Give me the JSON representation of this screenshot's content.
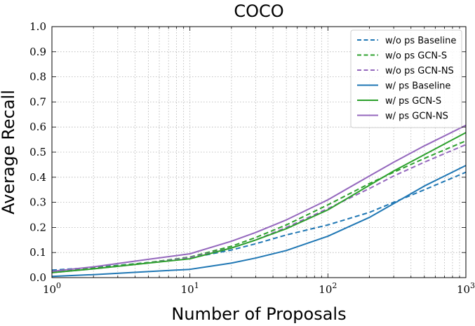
{
  "chart_data": {
    "type": "line",
    "title": "COCO",
    "xlabel": "Number of Proposals",
    "ylabel": "Average Recall",
    "xscale": "log",
    "xlim": [
      1,
      1000
    ],
    "ylim": [
      0,
      1.0
    ],
    "grid": true,
    "legend_position": "top-right",
    "x_tick_labels": [
      {
        "value": 1,
        "base": "10",
        "exp": "0"
      },
      {
        "value": 10,
        "base": "10",
        "exp": "1"
      },
      {
        "value": 100,
        "base": "10",
        "exp": "2"
      },
      {
        "value": 1000,
        "base": "10",
        "exp": "3"
      }
    ],
    "y_tick_labels": [
      "0.0",
      "0.1",
      "0.2",
      "0.3",
      "0.4",
      "0.5",
      "0.6",
      "0.7",
      "0.8",
      "0.9",
      "1.0"
    ],
    "x": [
      1,
      2,
      5,
      10,
      20,
      30,
      50,
      100,
      200,
      300,
      500,
      1000
    ],
    "series": [
      {
        "name": "w/o ps Baseline",
        "color": "#1f77b4",
        "style": "dashed",
        "values": [
          0.03,
          0.04,
          0.06,
          0.078,
          0.11,
          0.135,
          0.17,
          0.21,
          0.26,
          0.3,
          0.35,
          0.42
        ]
      },
      {
        "name": "w/o ps GCN-S",
        "color": "#2ca02c",
        "style": "dashed",
        "values": [
          0.025,
          0.038,
          0.06,
          0.082,
          0.125,
          0.16,
          0.21,
          0.29,
          0.375,
          0.42,
          0.475,
          0.545
        ]
      },
      {
        "name": "w/o ps GCN-NS",
        "color": "#9467bd",
        "style": "dashed",
        "values": [
          0.02,
          0.035,
          0.058,
          0.08,
          0.118,
          0.15,
          0.2,
          0.275,
          0.355,
          0.405,
          0.46,
          0.53
        ]
      },
      {
        "name": "w/ ps Baseline",
        "color": "#1f77b4",
        "style": "solid",
        "values": [
          0.005,
          0.012,
          0.024,
          0.033,
          0.058,
          0.078,
          0.108,
          0.165,
          0.24,
          0.295,
          0.365,
          0.447
        ]
      },
      {
        "name": "w/ ps GCN-S",
        "color": "#2ca02c",
        "style": "solid",
        "values": [
          0.02,
          0.035,
          0.058,
          0.075,
          0.118,
          0.15,
          0.195,
          0.27,
          0.368,
          0.425,
          0.49,
          0.578
        ]
      },
      {
        "name": "w/ ps GCN-NS",
        "color": "#9467bd",
        "style": "solid",
        "values": [
          0.025,
          0.043,
          0.073,
          0.095,
          0.145,
          0.18,
          0.23,
          0.31,
          0.405,
          0.46,
          0.525,
          0.607
        ]
      }
    ]
  }
}
